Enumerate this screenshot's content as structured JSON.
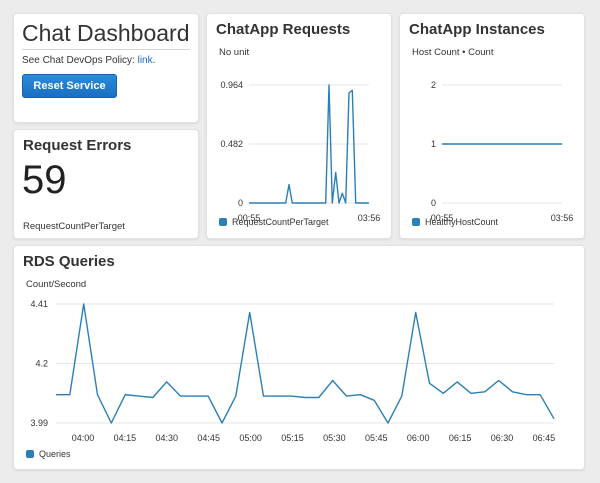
{
  "colors": {
    "series": "#2b7fb8",
    "button": "#1a6fc2",
    "link": "#1a6fc2"
  },
  "dashboard": {
    "title": "Chat Dashboard",
    "policy_text": "See Chat DevOps Policy:",
    "policy_link": "link",
    "policy_suffix": ".",
    "reset_label": "Reset Service"
  },
  "errors": {
    "title": "Request Errors",
    "value": "59",
    "metric": "RequestCountPerTarget"
  },
  "requests": {
    "title": "ChatApp Requests",
    "unit": "No unit",
    "legend": "RequestCountPerTarget",
    "chart_data": {
      "type": "line",
      "ylim": [
        0,
        0.964
      ],
      "yticks": [
        "0.964",
        "0.482",
        "0"
      ],
      "xticks": [
        "00:55",
        "03:56"
      ],
      "series": [
        {
          "name": "RequestCountPerTarget",
          "values": [
            0,
            0,
            0,
            0,
            0,
            0,
            0,
            0,
            0,
            0,
            0,
            0,
            0.15,
            0,
            0,
            0,
            0,
            0,
            0,
            0,
            0,
            0,
            0,
            0,
            0.964,
            0,
            0.25,
            0,
            0.08,
            0,
            0.9,
            0.92,
            0,
            0,
            0,
            0,
            0
          ]
        }
      ]
    }
  },
  "instances": {
    "title": "ChatApp Instances",
    "unit": "Host Count • Count",
    "legend": "HealthyHostCount",
    "chart_data": {
      "type": "line",
      "ylim": [
        0,
        2
      ],
      "yticks": [
        "2",
        "1",
        "0"
      ],
      "xticks": [
        "00:55",
        "03:56"
      ],
      "series": [
        {
          "name": "HealthyHostCount",
          "values": [
            1,
            1
          ]
        }
      ]
    }
  },
  "rds": {
    "title": "RDS Queries",
    "unit": "Count/Second",
    "legend": "Queries",
    "chart_data": {
      "type": "line",
      "ylim": [
        3.99,
        4.41
      ],
      "yticks": [
        "4.41",
        "4.2",
        "3.99"
      ],
      "xticks": [
        "04:00",
        "04:15",
        "04:30",
        "04:45",
        "05:00",
        "05:15",
        "05:30",
        "05:45",
        "06:00",
        "06:15",
        "06:30",
        "06:45"
      ],
      "series": [
        {
          "name": "Queries",
          "values": [
            4.09,
            4.09,
            4.41,
            4.09,
            3.99,
            4.09,
            4.085,
            4.08,
            4.135,
            4.085,
            4.085,
            4.085,
            3.99,
            4.085,
            4.38,
            4.085,
            4.085,
            4.085,
            4.08,
            4.08,
            4.14,
            4.085,
            4.09,
            4.07,
            3.99,
            4.085,
            4.38,
            4.13,
            4.095,
            4.135,
            4.095,
            4.1,
            4.14,
            4.1,
            4.09,
            4.09,
            4.005
          ]
        }
      ]
    }
  }
}
